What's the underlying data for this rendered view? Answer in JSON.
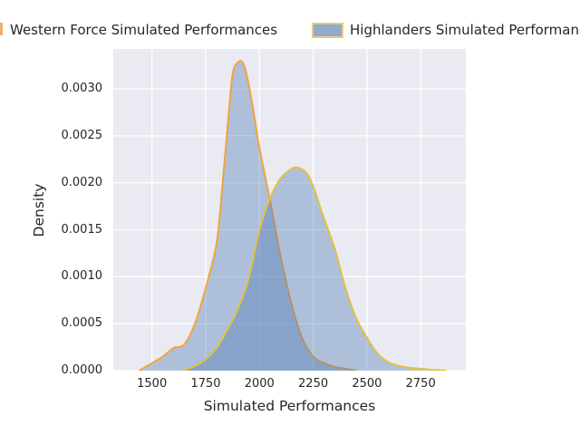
{
  "figure": {
    "background_color": "#ffffff",
    "plot_bg_color": "#eaeaf2",
    "grid_color": "#ffffff",
    "text_color": "#262626"
  },
  "legend": {
    "entries": [
      {
        "label": "Western Force Simulated Performances",
        "swatch_fill": "#92aacb",
        "swatch_border": "#f0a649",
        "clipped": "left-edge"
      },
      {
        "label": "Highlanders Simulated Performances",
        "swatch_fill": "#92aacb",
        "swatch_border": "#e7cd7e",
        "clipped": "right-edge"
      }
    ]
  },
  "chart_data": {
    "type": "area",
    "subtype": "kde-density",
    "title": "",
    "xlabel": "Simulated Performances",
    "ylabel": "Density",
    "xlim": [
      1320,
      2960
    ],
    "ylim": [
      0,
      0.003425
    ],
    "x_ticks": [
      1500,
      1750,
      2000,
      2250,
      2500,
      2750
    ],
    "y_ticks": [
      0.0,
      0.0005,
      0.001,
      0.0015,
      0.002,
      0.0025,
      0.003
    ],
    "grid": true,
    "legend_position": "above-plot",
    "fill_rgba": [
      70,
      116,
      175,
      0.37
    ],
    "series": [
      {
        "name": "Western Force Simulated Performances",
        "line_color": "#f2a43c",
        "peak_x": 1900,
        "peak_density": 0.00328,
        "x": [
          1440,
          1500,
          1550,
          1600,
          1650,
          1700,
          1750,
          1800,
          1825,
          1850,
          1875,
          1900,
          1925,
          1950,
          1975,
          2000,
          2050,
          2100,
          2150,
          2200,
          2250,
          2300,
          2350,
          2400,
          2450
        ],
        "y": [
          0.0,
          8e-05,
          0.00015,
          0.00024,
          0.00028,
          0.0005,
          0.00088,
          0.00135,
          0.0019,
          0.00255,
          0.00315,
          0.00328,
          0.00327,
          0.00305,
          0.00272,
          0.00237,
          0.0018,
          0.0012,
          0.0007,
          0.00034,
          0.00015,
          8e-05,
          4e-05,
          2e-05,
          0.0
        ]
      },
      {
        "name": "Highlanders Simulated Performances",
        "line_color": "#e2c13d",
        "peak_x": 2180,
        "peak_density": 0.00216,
        "x": [
          1640,
          1700,
          1750,
          1800,
          1850,
          1900,
          1950,
          2000,
          2050,
          2100,
          2150,
          2180,
          2220,
          2250,
          2300,
          2350,
          2400,
          2450,
          2500,
          2550,
          2600,
          2650,
          2700,
          2750,
          2800,
          2870
        ],
        "y": [
          0.0,
          5e-05,
          0.00012,
          0.00024,
          0.00043,
          0.00066,
          0.00098,
          0.00149,
          0.00184,
          0.00205,
          0.00215,
          0.00216,
          0.0021,
          0.00196,
          0.00162,
          0.0013,
          0.00088,
          0.00056,
          0.00035,
          0.00018,
          9e-05,
          5e-05,
          3e-05,
          2e-05,
          1e-05,
          0.0
        ]
      }
    ]
  }
}
